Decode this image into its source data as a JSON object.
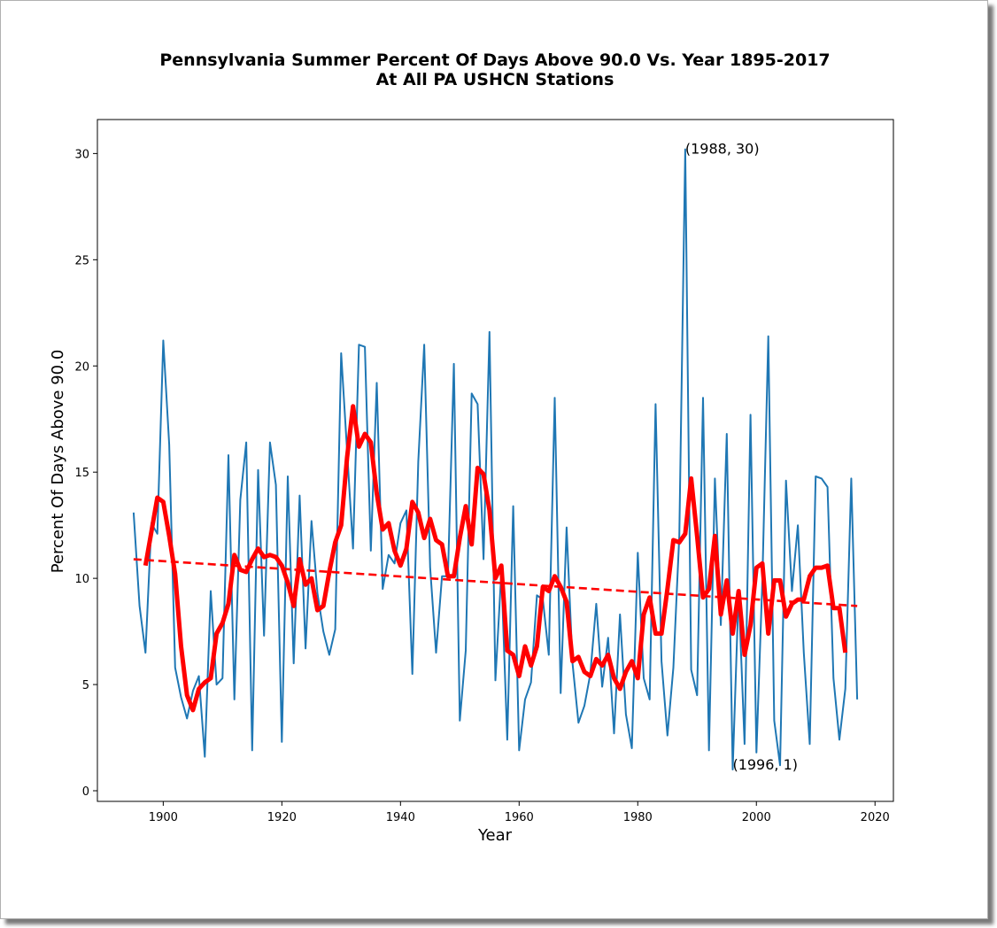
{
  "chart_data": {
    "type": "line",
    "title": "Pennsylvania Summer Percent Of Days Above 90.0 Vs. Year 1895-2017",
    "subtitle": "At All PA USHCN Stations",
    "xlabel": "Year",
    "ylabel": "Percent Of Days Above 90.0",
    "xlim": [
      1888.9,
      2023.1
    ],
    "ylim": [
      -0.5,
      31.6
    ],
    "xticks": [
      1900,
      1920,
      1940,
      1960,
      1980,
      2000,
      2020
    ],
    "yticks": [
      0,
      5,
      10,
      15,
      20,
      25,
      30
    ],
    "grid": false,
    "colors": {
      "annual": "#1f77b4",
      "smoothed": "#ff0000",
      "trend": "#ff0000"
    },
    "annotations": [
      {
        "text": "(1988, 30)",
        "x": 1988,
        "y": 30
      },
      {
        "text": "(1996, 1)",
        "x": 1996,
        "y": 1
      }
    ],
    "x": [
      1895,
      1896,
      1897,
      1898,
      1899,
      1900,
      1901,
      1902,
      1903,
      1904,
      1905,
      1906,
      1907,
      1908,
      1909,
      1910,
      1911,
      1912,
      1913,
      1914,
      1915,
      1916,
      1917,
      1918,
      1919,
      1920,
      1921,
      1922,
      1923,
      1924,
      1925,
      1926,
      1927,
      1928,
      1929,
      1930,
      1931,
      1932,
      1933,
      1934,
      1935,
      1936,
      1937,
      1938,
      1939,
      1940,
      1941,
      1942,
      1943,
      1944,
      1945,
      1946,
      1947,
      1948,
      1949,
      1950,
      1951,
      1952,
      1953,
      1954,
      1955,
      1956,
      1957,
      1958,
      1959,
      1960,
      1961,
      1962,
      1963,
      1964,
      1965,
      1966,
      1967,
      1968,
      1969,
      1970,
      1971,
      1972,
      1973,
      1974,
      1975,
      1976,
      1977,
      1978,
      1979,
      1980,
      1981,
      1982,
      1983,
      1984,
      1985,
      1986,
      1987,
      1988,
      1989,
      1990,
      1991,
      1992,
      1993,
      1994,
      1995,
      1996,
      1997,
      1998,
      1999,
      2000,
      2001,
      2002,
      2003,
      2004,
      2005,
      2006,
      2007,
      2008,
      2009,
      2010,
      2011,
      2012,
      2013,
      2014,
      2015,
      2016,
      2017
    ],
    "series": [
      {
        "values": [
          13.1,
          8.7,
          6.5,
          12.6,
          12.1,
          21.2,
          16.3,
          5.8,
          4.4,
          3.4,
          4.7,
          5.4,
          1.6,
          9.4,
          5.0,
          5.3,
          15.8,
          4.3,
          13.7,
          16.4,
          1.9,
          15.1,
          7.3,
          16.4,
          14.4,
          2.3,
          14.8,
          6.0,
          13.9,
          6.7,
          12.7,
          9.3,
          7.5,
          6.4,
          7.6,
          20.6,
          16.0,
          11.4,
          21.0,
          20.9,
          11.3,
          19.2,
          9.5,
          11.1,
          10.7,
          12.6,
          13.2,
          5.5,
          15.5,
          21.0,
          10.5,
          6.5,
          10.1,
          10.1,
          20.1,
          3.3,
          6.6,
          18.7,
          18.2,
          10.9,
          21.6,
          5.2,
          10.3,
          2.4,
          13.4,
          1.9,
          4.3,
          5.1,
          9.2,
          9.0,
          6.4,
          18.5,
          4.6,
          12.4,
          6.0,
          3.2,
          4.0,
          5.5,
          8.8,
          4.9,
          7.2,
          2.7,
          8.3,
          3.6,
          2.0,
          11.2,
          5.3,
          4.3,
          18.2,
          6.1,
          2.6,
          5.8,
          12.0,
          30.2,
          5.7,
          4.5,
          18.5,
          1.9,
          14.7,
          7.8,
          16.8,
          1.0,
          9.4,
          2.2,
          17.7,
          1.8,
          9.9,
          21.4,
          3.3,
          1.2,
          14.6,
          9.4,
          12.5,
          6.5,
          2.2,
          14.8,
          14.7,
          14.3,
          5.3,
          2.4,
          4.8,
          14.7,
          4.3
        ]
      },
      {
        "x": [
          1897,
          1898,
          1899,
          1900,
          1901,
          1902,
          1903,
          1904,
          1905,
          1906,
          1907,
          1908,
          1909,
          1910,
          1911,
          1912,
          1913,
          1914,
          1915,
          1916,
          1917,
          1918,
          1919,
          1920,
          1921,
          1922,
          1923,
          1924,
          1925,
          1926,
          1927,
          1928,
          1929,
          1930,
          1931,
          1932,
          1933,
          1934,
          1935,
          1936,
          1937,
          1938,
          1939,
          1940,
          1941,
          1942,
          1943,
          1944,
          1945,
          1946,
          1947,
          1948,
          1949,
          1950,
          1951,
          1952,
          1953,
          1954,
          1955,
          1956,
          1957,
          1958,
          1959,
          1960,
          1961,
          1962,
          1963,
          1964,
          1965,
          1966,
          1967,
          1968,
          1969,
          1970,
          1971,
          1972,
          1973,
          1974,
          1975,
          1976,
          1977,
          1978,
          1979,
          1980,
          1981,
          1982,
          1983,
          1984,
          1985,
          1986,
          1987,
          1988,
          1989,
          1990,
          1991,
          1992,
          1993,
          1994,
          1995,
          1996,
          1997,
          1998,
          1999,
          2000,
          2001,
          2002,
          2003,
          2004,
          2005,
          2006,
          2007,
          2008,
          2009,
          2010,
          2011,
          2012,
          2013,
          2014,
          2015
        ],
        "values": [
          10.6,
          12.2,
          13.8,
          13.6,
          12.0,
          10.2,
          6.8,
          4.5,
          3.8,
          4.8,
          5.1,
          5.3,
          7.4,
          7.9,
          8.8,
          11.1,
          10.4,
          10.3,
          10.9,
          11.4,
          11.0,
          11.1,
          11.0,
          10.6,
          9.8,
          8.7,
          10.9,
          9.7,
          10.0,
          8.5,
          8.7,
          10.3,
          11.7,
          12.5,
          15.7,
          18.1,
          16.2,
          16.8,
          16.4,
          14.0,
          12.3,
          12.6,
          11.3,
          10.6,
          11.4,
          13.6,
          13.1,
          11.9,
          12.8,
          11.8,
          11.6,
          10.1,
          10.1,
          11.9,
          13.4,
          11.6,
          15.2,
          14.9,
          13.2,
          10.0,
          10.6,
          6.6,
          6.4,
          5.4,
          6.8,
          5.9,
          6.8,
          9.6,
          9.4,
          10.1,
          9.6,
          8.9,
          6.1,
          6.3,
          5.6,
          5.4,
          6.2,
          5.9,
          6.4,
          5.3,
          4.8,
          5.6,
          6.1,
          5.3,
          8.3,
          9.1,
          7.4,
          7.4,
          9.5,
          11.8,
          11.7,
          12.1,
          14.7,
          12.0,
          9.1,
          9.5,
          12.0,
          8.3,
          9.9,
          7.4,
          9.4,
          6.4,
          7.8,
          10.5,
          10.7,
          7.4,
          9.9,
          9.9,
          8.2,
          8.8,
          9.0,
          9.0,
          10.1,
          10.5,
          10.5,
          10.6,
          8.6,
          8.6,
          6.5
        ]
      },
      {
        "x": [
          1895,
          2017
        ],
        "values": [
          10.9,
          8.7
        ]
      }
    ]
  }
}
